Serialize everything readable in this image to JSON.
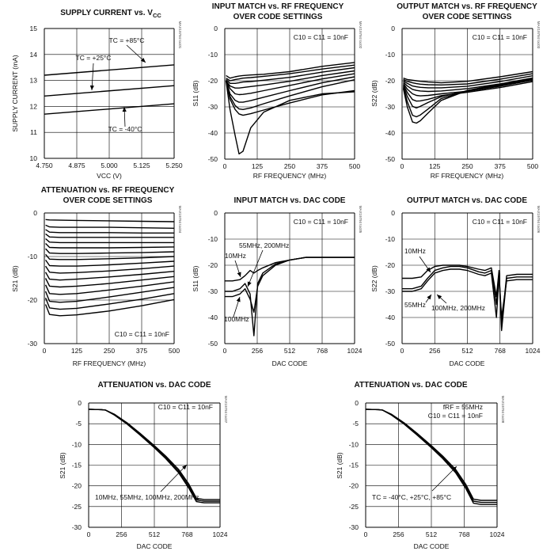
{
  "charts": [
    {
      "title": [
        "SUPPLY CURRENT vs. V",
        "CC"
      ],
      "xlabel": "VCC (V)",
      "ylabel": "SUPPLY CURRENT (mA)",
      "xticks": [
        "4.750",
        "4.875",
        "5.000",
        "5.125",
        "5.250"
      ],
      "yticks": [
        "15",
        "14",
        "13",
        "12",
        "11",
        "10"
      ],
      "code": "MAX19794 toc01",
      "annotations": [
        "TC = +85°C",
        "TC = +25°C",
        "TC = -40°C"
      ]
    },
    {
      "title": [
        "INPUT MATCH vs. RF FREQUENCY",
        "OVER CODE SETTINGS"
      ],
      "xlabel": "RF FREQUENCY (MHz)",
      "ylabel": "S11 (dB)",
      "xticks": [
        "0",
        "125",
        "250",
        "375",
        "500"
      ],
      "yticks": [
        "0",
        "-10",
        "-20",
        "-30",
        "-40",
        "-50"
      ],
      "code": "MAX19794 toc02",
      "annotations": [
        "C10 = C11 = 10nF"
      ]
    },
    {
      "title": [
        "OUTPUT MATCH vs. RF FREQUENCY",
        "OVER CODE SETTINGS"
      ],
      "xlabel": "RF FREQUENCY (MHz)",
      "ylabel": "S22 (dB)",
      "xticks": [
        "0",
        "125",
        "250",
        "375",
        "500"
      ],
      "yticks": [
        "0",
        "-10",
        "-20",
        "-30",
        "-40",
        "-50"
      ],
      "code": "MAX19794 toc03",
      "annotations": [
        "C10 = C11 = 10nF"
      ]
    },
    {
      "title": [
        "ATTENUATION vs. RF FREQUENCY",
        "OVER CODE SETTINGS"
      ],
      "xlabel": "RF FREQUENCY (MHz)",
      "ylabel": "S21 (dB)",
      "xticks": [
        "0",
        "125",
        "250",
        "375",
        "500"
      ],
      "yticks": [
        "0",
        "-10",
        "-20",
        "-30"
      ],
      "code": "MAX19794 toc04",
      "annotations": [
        "C10 = C11 = 10nF"
      ]
    },
    {
      "title": [
        "INPUT MATCH vs. DAC CODE"
      ],
      "xlabel": "DAC CODE",
      "ylabel": "S11 (dB)",
      "xticks": [
        "0",
        "256",
        "512",
        "768",
        "1024"
      ],
      "yticks": [
        "0",
        "-10",
        "-20",
        "-30",
        "-40",
        "-50"
      ],
      "code": "MAX19794 toc05",
      "annotations": [
        "C10 = C11 = 10nF",
        "10MHz",
        "55MHz, 200MHz",
        "100MHz"
      ]
    },
    {
      "title": [
        "OUTPUT MATCH vs. DAC CODE"
      ],
      "xlabel": "DAC CODE",
      "ylabel": "S22 (dB)",
      "xticks": [
        "0",
        "256",
        "512",
        "768",
        "1024"
      ],
      "yticks": [
        "0",
        "-10",
        "-20",
        "-30",
        "-40",
        "-50"
      ],
      "code": "MAX19794 toc06",
      "annotations": [
        "C10 = C11 = 10nF",
        "10MHz",
        "55MHz",
        "100MHz, 200MHz"
      ]
    },
    {
      "title": [
        "ATTENUATION vs. DAC CODE"
      ],
      "xlabel": "DAC CODE",
      "ylabel": "S21 (dB)",
      "xticks": [
        "0",
        "256",
        "512",
        "768",
        "1024"
      ],
      "yticks": [
        "0",
        "-5",
        "-10",
        "-15",
        "-20",
        "-25",
        "-30"
      ],
      "code": "MAX19794 toc07",
      "annotations": [
        "C10 = C11 = 10nF",
        "10MHz, 55MHz, 100MHz, 200MHz"
      ]
    },
    {
      "title": [
        "ATTENUATION vs. DAC CODE"
      ],
      "xlabel": "DAC CODE",
      "ylabel": "S21 (dB)",
      "xticks": [
        "0",
        "256",
        "512",
        "768",
        "1024"
      ],
      "yticks": [
        "0",
        "-5",
        "-10",
        "-15",
        "-20",
        "-25",
        "-30"
      ],
      "code": "MAX19794 toc08",
      "annotations": [
        "fRF = 55MHz",
        "C10 = C11 = 10nF",
        "TC = -40°C, +25°C, +85°C"
      ]
    }
  ],
  "chart_data": [
    {
      "type": "line",
      "title": "SUPPLY CURRENT vs. VCC",
      "xlabel": "VCC (V)",
      "ylabel": "SUPPLY CURRENT (mA)",
      "xlim": [
        4.75,
        5.25
      ],
      "ylim": [
        10,
        15
      ],
      "grid": true,
      "x": [
        4.75,
        5.25
      ],
      "series": [
        {
          "name": "TC = +85°C",
          "values": [
            13.2,
            13.6
          ]
        },
        {
          "name": "TC = +25°C",
          "values": [
            12.4,
            12.8
          ]
        },
        {
          "name": "TC = -40°C",
          "values": [
            11.7,
            12.1
          ]
        }
      ]
    },
    {
      "type": "line",
      "title": "INPUT MATCH vs. RF FREQUENCY OVER CODE SETTINGS",
      "xlabel": "RF FREQUENCY (MHz)",
      "ylabel": "S11 (dB)",
      "xlim": [
        0,
        500
      ],
      "ylim": [
        -50,
        0
      ],
      "grid": true,
      "x": [
        5,
        20,
        40,
        55,
        70,
        100,
        150,
        250,
        375,
        500
      ],
      "series": [
        {
          "values": [
            -18,
            -19,
            -18.5,
            -18.2,
            -18,
            -17.8,
            -17.5,
            -16.5,
            -14.5,
            -13
          ]
        },
        {
          "values": [
            -19,
            -20,
            -19.5,
            -19.3,
            -19,
            -18.8,
            -18.3,
            -17.3,
            -15.5,
            -14
          ]
        },
        {
          "values": [
            -19.5,
            -21,
            -21,
            -20.8,
            -20.5,
            -20.3,
            -19.8,
            -18.7,
            -16.7,
            -15
          ]
        },
        {
          "values": [
            -20,
            -22,
            -22.8,
            -22.8,
            -22.6,
            -22.2,
            -21.6,
            -20.2,
            -18,
            -16.2
          ]
        },
        {
          "values": [
            -20,
            -23,
            -25,
            -25.3,
            -25.2,
            -24.8,
            -23.8,
            -21.8,
            -19.3,
            -17.3
          ]
        },
        {
          "values": [
            -20,
            -25,
            -27.5,
            -28.2,
            -28.2,
            -27.6,
            -26.3,
            -23.8,
            -20.8,
            -18.5
          ]
        },
        {
          "values": [
            -20,
            -26,
            -29.5,
            -30.8,
            -31,
            -30.4,
            -28.8,
            -25.8,
            -22.3,
            -19.6
          ]
        },
        {
          "values": [
            -20,
            -27,
            -31,
            -32.7,
            -33.2,
            -32.6,
            -31.2,
            -28.5,
            -25.4,
            -23.8
          ]
        },
        {
          "values": [
            -20,
            -31,
            -41,
            -48,
            -47,
            -38,
            -32,
            -27.5,
            -25,
            -24.2
          ]
        }
      ]
    },
    {
      "type": "line",
      "title": "OUTPUT MATCH vs. RF FREQUENCY OVER CODE SETTINGS",
      "xlabel": "RF FREQUENCY (MHz)",
      "ylabel": "S22 (dB)",
      "xlim": [
        0,
        500
      ],
      "ylim": [
        -50,
        0
      ],
      "grid": true,
      "x": [
        5,
        20,
        40,
        55,
        70,
        100,
        150,
        250,
        375,
        500
      ],
      "series": [
        {
          "values": [
            -19,
            -19.5,
            -19.8,
            -20,
            -20.2,
            -20.5,
            -20.8,
            -20.2,
            -18.5,
            -16.5
          ]
        },
        {
          "values": [
            -19.5,
            -20.2,
            -20.8,
            -21.1,
            -21.3,
            -21.5,
            -21.6,
            -21.2,
            -19.4,
            -17.3
          ]
        },
        {
          "values": [
            -20,
            -21,
            -22,
            -22.3,
            -22.5,
            -22.7,
            -22.7,
            -22.1,
            -20.3,
            -18.1
          ]
        },
        {
          "values": [
            -20.5,
            -22,
            -23.3,
            -23.7,
            -23.9,
            -24.1,
            -23.9,
            -23,
            -21.2,
            -18.9
          ]
        },
        {
          "values": [
            -21,
            -23.2,
            -25,
            -25.6,
            -25.8,
            -25.6,
            -25,
            -24,
            -22.1,
            -19.7
          ]
        },
        {
          "values": [
            -21.5,
            -24.5,
            -27.2,
            -27.8,
            -27.7,
            -27.1,
            -25.7,
            -24.4,
            -22.6,
            -20.3
          ]
        },
        {
          "values": [
            -22,
            -26,
            -29.8,
            -30.4,
            -29.8,
            -28.3,
            -26.1,
            -23.8,
            -21.9,
            -19.8
          ]
        },
        {
          "values": [
            -22.5,
            -28,
            -33.2,
            -33.8,
            -33.1,
            -30.8,
            -26.8,
            -23.8,
            -21.6,
            -19.5
          ]
        },
        {
          "values": [
            -23,
            -30,
            -35.8,
            -36.2,
            -35.3,
            -32.3,
            -27.5,
            -23.7,
            -21.3,
            -19.2
          ]
        }
      ]
    },
    {
      "type": "line",
      "title": "ATTENUATION vs. RF FREQUENCY OVER CODE SETTINGS",
      "xlabel": "RF FREQUENCY (MHz)",
      "ylabel": "S21 (dB)",
      "xlim": [
        0,
        500
      ],
      "ylim": [
        -30,
        0
      ],
      "grid": true,
      "x": [
        5,
        20,
        60,
        125,
        250,
        375,
        500
      ],
      "series": [
        {
          "values": [
            -1.5,
            -1.6,
            -1.65,
            -1.7,
            -1.8,
            -1.9,
            -2
          ]
        },
        {
          "values": [
            -2.8,
            -3.2,
            -3.3,
            -3.3,
            -3.3,
            -3.4,
            -3.5
          ]
        },
        {
          "values": [
            -3.8,
            -4.4,
            -4.5,
            -4.5,
            -4.5,
            -4.6,
            -4.6
          ]
        },
        {
          "values": [
            -4.8,
            -5.5,
            -5.6,
            -5.6,
            -5.6,
            -5.6,
            -5.6
          ]
        },
        {
          "values": [
            -5.9,
            -6.7,
            -6.8,
            -6.8,
            -6.8,
            -6.8,
            -6.8
          ]
        },
        {
          "values": [
            -7.0,
            -7.9,
            -8.0,
            -8.0,
            -8.0,
            -7.9,
            -7.8
          ]
        },
        {
          "values": [
            -8.2,
            -9.2,
            -9.3,
            -9.3,
            -9.2,
            -9.1,
            -8.9
          ]
        },
        {
          "values": [
            -9.5,
            -10.6,
            -10.7,
            -10.7,
            -10.5,
            -10.3,
            -10
          ]
        },
        {
          "values": [
            -10.8,
            -12.1,
            -12.2,
            -12.2,
            -11.9,
            -11.5,
            -11.1
          ]
        },
        {
          "values": [
            -12.2,
            -13.6,
            -13.8,
            -13.7,
            -13.3,
            -12.8,
            -12.2
          ]
        },
        {
          "values": [
            -13.6,
            -15.2,
            -15.4,
            -15.2,
            -14.7,
            -14.1,
            -13.4
          ]
        },
        {
          "values": [
            -15.0,
            -16.8,
            -17.0,
            -16.8,
            -16.2,
            -15.4,
            -14.6
          ]
        },
        {
          "values": [
            -16.5,
            -18.5,
            -18.7,
            -18.5,
            -17.7,
            -16.8,
            -15.8
          ]
        },
        {
          "values": [
            -18.0,
            -20.3,
            -20.5,
            -20.3,
            -19.3,
            -18.2,
            -17.1
          ]
        },
        {
          "values": [
            -19.5,
            -21.8,
            -22.1,
            -21.9,
            -20.9,
            -19.8,
            -18.5
          ]
        },
        {
          "values": [
            -21,
            -23.3,
            -23.6,
            -23.4,
            -22.5,
            -21.3,
            -19.9
          ]
        }
      ]
    },
    {
      "type": "line",
      "title": "INPUT MATCH vs. DAC CODE",
      "xlabel": "DAC CODE",
      "ylabel": "S11 (dB)",
      "xlim": [
        0,
        1024
      ],
      "ylim": [
        -50,
        0
      ],
      "grid": true,
      "x": [
        0,
        60,
        120,
        160,
        200,
        230,
        260,
        300,
        400,
        512,
        640,
        768,
        900,
        1024
      ],
      "series": [
        {
          "name": "10MHz",
          "values": [
            -26,
            -26,
            -25.5,
            -24,
            -22,
            -23,
            -22,
            -21,
            -19,
            -18,
            -17,
            -17,
            -17,
            -17
          ]
        },
        {
          "name": "55MHz, 200MHz",
          "values": [
            -30,
            -30,
            -29,
            -27,
            -31,
            -47,
            -27,
            -23,
            -19.5,
            -18,
            -17,
            -17,
            -17,
            -17
          ]
        },
        {
          "name": "100MHz",
          "values": [
            -32,
            -32,
            -31,
            -29,
            -33,
            -38,
            -28,
            -24,
            -20,
            -18,
            -17,
            -17,
            -17,
            -17
          ]
        }
      ]
    },
    {
      "type": "line",
      "title": "OUTPUT MATCH vs. DAC CODE",
      "xlabel": "DAC CODE",
      "ylabel": "S22 (dB)",
      "xlim": [
        0,
        1024
      ],
      "ylim": [
        -50,
        0
      ],
      "grid": true,
      "x": [
        0,
        80,
        150,
        200,
        256,
        320,
        380,
        450,
        512,
        600,
        650,
        700,
        740,
        760,
        780,
        820,
        900,
        1024
      ],
      "series": [
        {
          "name": "10MHz",
          "values": [
            -25,
            -25,
            -24.5,
            -22,
            -20.5,
            -20,
            -20,
            -20,
            -20.5,
            -21.5,
            -22,
            -21,
            -32,
            -22,
            -43,
            -24,
            -23.5,
            -23.5
          ]
        },
        {
          "name": "55MHz",
          "values": [
            -29,
            -29,
            -28,
            -25,
            -22,
            -21,
            -20.5,
            -20.5,
            -21,
            -22.5,
            -23,
            -22,
            -35,
            -23,
            -45,
            -25,
            -24.5,
            -24.5
          ]
        },
        {
          "name": "100MHz, 200MHz",
          "values": [
            -30,
            -30,
            -29,
            -26,
            -23,
            -22,
            -21.5,
            -21.5,
            -22,
            -23.5,
            -24,
            -23,
            -40,
            -24,
            -40,
            -26,
            -25.5,
            -25.5
          ]
        }
      ]
    },
    {
      "type": "line",
      "title": "ATTENUATION vs. DAC CODE",
      "xlabel": "DAC CODE",
      "ylabel": "S21 (dB)",
      "xlim": [
        0,
        1024
      ],
      "ylim": [
        -30,
        0
      ],
      "grid": true,
      "x": [
        0,
        100,
        130,
        200,
        300,
        400,
        512,
        600,
        700,
        780,
        840,
        900,
        1024
      ],
      "series": [
        {
          "values": [
            -1.5,
            -1.6,
            -1.7,
            -2.7,
            -4.8,
            -7.3,
            -10.3,
            -12.8,
            -16.0,
            -19.5,
            -23.0,
            -23.3,
            -23.3
          ]
        },
        {
          "values": [
            -1.5,
            -1.6,
            -1.7,
            -2.8,
            -4.9,
            -7.5,
            -10.5,
            -13.1,
            -16.4,
            -20.0,
            -23.4,
            -23.7,
            -23.7
          ]
        },
        {
          "values": [
            -1.5,
            -1.6,
            -1.7,
            -2.9,
            -5.1,
            -7.7,
            -10.8,
            -13.4,
            -16.8,
            -20.5,
            -23.8,
            -24.1,
            -24.1
          ]
        }
      ]
    },
    {
      "type": "line",
      "title": "ATTENUATION vs. DAC CODE",
      "xlabel": "DAC CODE",
      "ylabel": "S21 (dB)",
      "xlim": [
        0,
        1024
      ],
      "ylim": [
        -30,
        0
      ],
      "grid": true,
      "x": [
        0,
        100,
        130,
        200,
        300,
        400,
        512,
        600,
        700,
        780,
        840,
        900,
        1024
      ],
      "series": [
        {
          "values": [
            -1.5,
            -1.6,
            -1.7,
            -2.7,
            -4.8,
            -7.3,
            -10.3,
            -12.8,
            -16.0,
            -19.6,
            -23.2,
            -23.5,
            -23.5
          ]
        },
        {
          "values": [
            -1.5,
            -1.6,
            -1.7,
            -2.8,
            -4.9,
            -7.5,
            -10.5,
            -13.1,
            -16.4,
            -20.1,
            -23.7,
            -24.0,
            -24.0
          ]
        },
        {
          "values": [
            -1.5,
            -1.6,
            -1.7,
            -2.9,
            -5.1,
            -7.7,
            -10.8,
            -13.4,
            -16.8,
            -20.6,
            -24.2,
            -24.5,
            -24.5
          ]
        }
      ]
    }
  ]
}
